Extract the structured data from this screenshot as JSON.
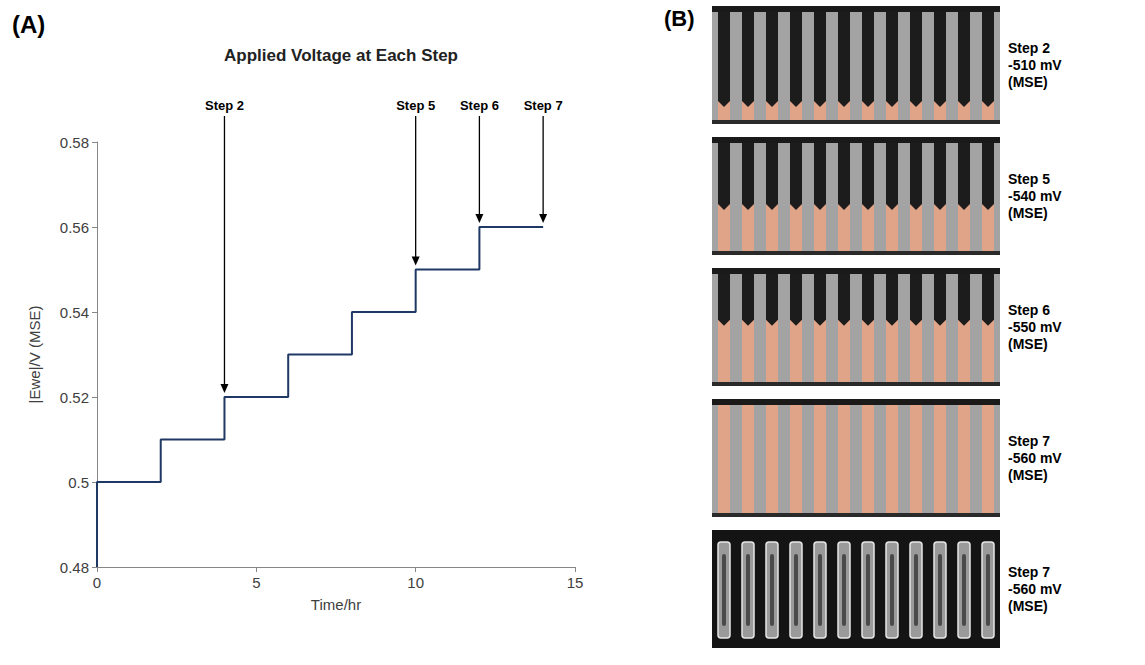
{
  "panel_labels": [
    "(A)",
    "(B)"
  ],
  "chart_data": {
    "type": "line",
    "title": "Applied Voltage at Each Step",
    "x_label": "Time/hr",
    "y_label": "|Ewe|/V (MSE)",
    "x": [
      0,
      0,
      2,
      4,
      6,
      8,
      10,
      12,
      14
    ],
    "values": [
      0.48,
      0.5,
      0.51,
      0.52,
      0.53,
      0.54,
      0.55,
      0.56,
      0.56
    ],
    "color": "#1f3864",
    "line_style": "step",
    "xlim": [
      0,
      15
    ],
    "xticks": [
      0,
      5,
      10,
      15
    ],
    "ylim": [
      0.48,
      0.58
    ],
    "yticks": [
      0.48,
      0.5,
      0.52,
      0.54,
      0.56,
      0.58
    ],
    "grid": false,
    "annotations": [
      {
        "text": "Step 2",
        "x": 4,
        "y": 0.52
      },
      {
        "text": "Step 5",
        "x": 10,
        "y": 0.55
      },
      {
        "text": "Step 6",
        "x": 12,
        "y": 0.56
      },
      {
        "text": "Step 7",
        "x": 14,
        "y": 0.56
      }
    ]
  },
  "images": [
    {
      "kind": "optical",
      "label": [
        "Step 2",
        "-510 mV",
        "(MSE)"
      ]
    },
    {
      "kind": "optical",
      "label": [
        "Step 5",
        "-540 mV",
        "(MSE)"
      ]
    },
    {
      "kind": "optical",
      "label": [
        "Step 6",
        "-550 mV",
        "(MSE)"
      ]
    },
    {
      "kind": "optical",
      "label": [
        "Step 7",
        "-560 mV",
        "(MSE)"
      ]
    },
    {
      "kind": "x-ray",
      "label": [
        "Step 7",
        "-560 mV",
        "(MSE)"
      ]
    }
  ]
}
